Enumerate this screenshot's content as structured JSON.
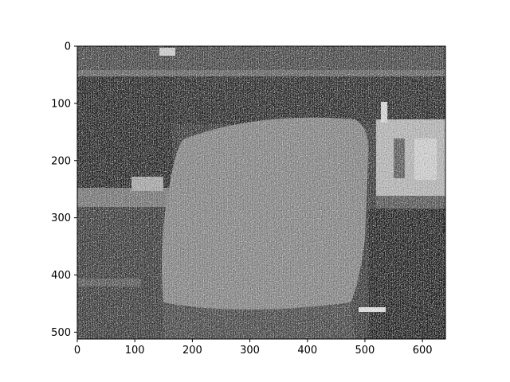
{
  "figure": {
    "background": "#ffffff",
    "image_description_colormap": "gray"
  },
  "axes": {
    "x_ticks": [
      "0",
      "100",
      "200",
      "300",
      "400",
      "500",
      "600"
    ],
    "y_ticks": [
      "0",
      "100",
      "200",
      "300",
      "400",
      "500"
    ],
    "x_tick_values": [
      0,
      100,
      200,
      300,
      400,
      500,
      600
    ],
    "y_tick_values": [
      0,
      100,
      200,
      300,
      400,
      500
    ],
    "xlim": [
      0,
      640
    ],
    "ylim": [
      512,
      0
    ]
  },
  "image": {
    "width": 640,
    "height": 512,
    "colormap": "grayscale",
    "noise": "heavy"
  }
}
